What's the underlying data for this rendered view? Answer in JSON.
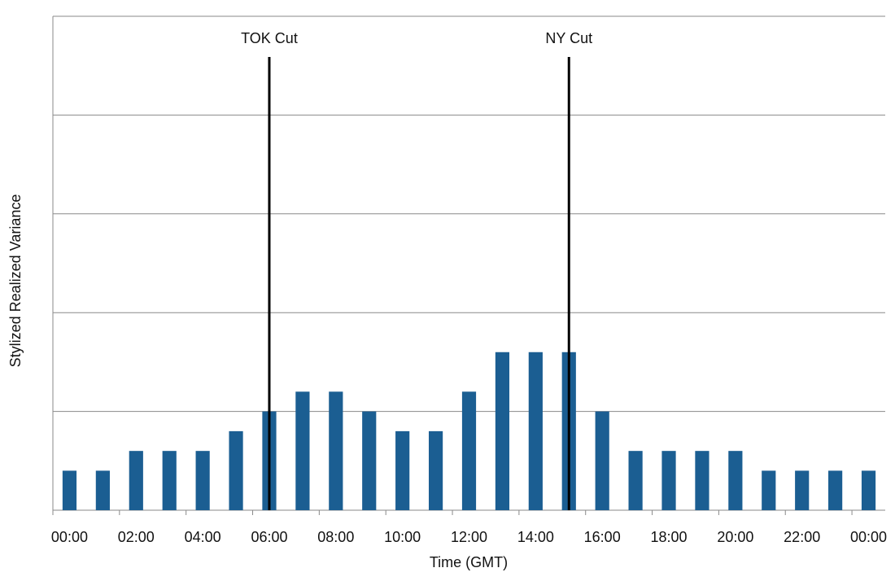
{
  "chart_data": {
    "type": "bar",
    "x_label": "Time (GMT)",
    "y_label": "Stylized Realized Variance",
    "categories": [
      "00:00",
      null,
      "02:00",
      null,
      "04:00",
      null,
      "06:00",
      null,
      "08:00",
      null,
      "10:00",
      null,
      "12:00",
      null,
      "14:00",
      null,
      "16:00",
      null,
      "18:00",
      null,
      "20:00",
      null,
      "22:00",
      null,
      "00:00"
    ],
    "values": [
      0.4,
      0.4,
      0.6,
      0.6,
      0.6,
      0.8,
      1.0,
      1.2,
      1.2,
      1.0,
      0.8,
      0.8,
      1.2,
      1.6,
      1.6,
      1.6,
      1.0,
      0.6,
      0.6,
      0.6,
      0.6,
      0.4,
      0.4,
      0.4,
      0.4
    ],
    "color": "#1b5e92",
    "ylim": [
      0,
      5
    ],
    "yticks": [
      0,
      1,
      2,
      3,
      4,
      5
    ],
    "grid": true,
    "annotations": [
      {
        "text": "TOK Cut",
        "x": 6
      },
      {
        "text": "NY Cut",
        "x": 15
      }
    ]
  }
}
